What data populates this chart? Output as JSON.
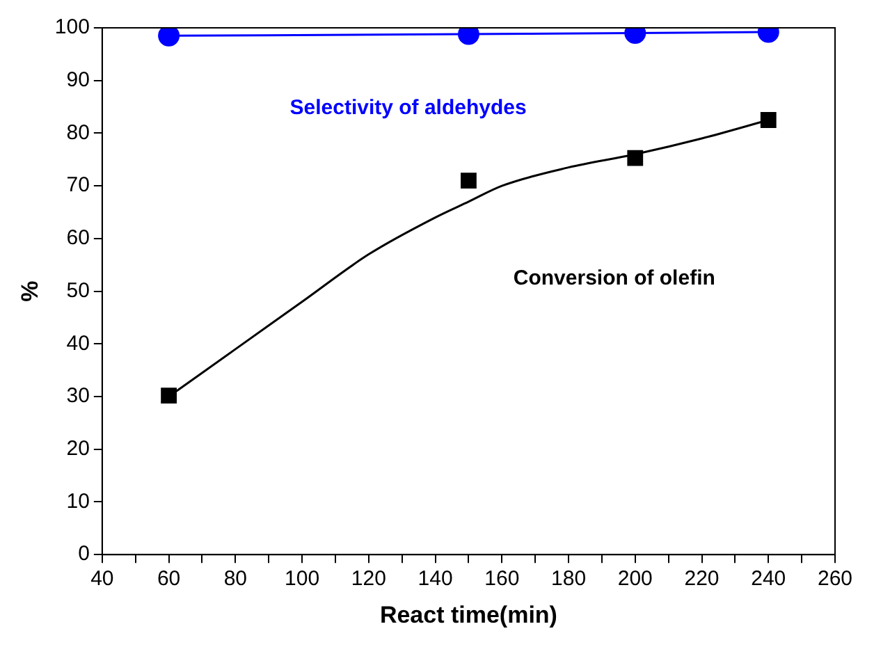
{
  "chart_data": {
    "type": "line",
    "xlabel": "React time(min)",
    "ylabel": "%",
    "xlim": [
      40,
      260
    ],
    "xticks": [
      40,
      {
        "value": 50,
        "label": null
      },
      60,
      {
        "value": 70,
        "label": null
      },
      80,
      {
        "value": 90,
        "label": null
      },
      100,
      {
        "value": 110,
        "label": null
      },
      120,
      {
        "value": 130,
        "label": null
      },
      140,
      {
        "value": 150,
        "label": null
      },
      160,
      {
        "value": 170,
        "label": null
      },
      180,
      {
        "value": 190,
        "label": null
      },
      200,
      {
        "value": 210,
        "label": null
      },
      220,
      {
        "value": 230,
        "label": null
      },
      240,
      {
        "value": 250,
        "label": null
      },
      260
    ],
    "ylim": [
      0,
      100
    ],
    "yticks": [
      0,
      10,
      20,
      30,
      40,
      50,
      60,
      70,
      80,
      90,
      100
    ],
    "grid": false,
    "legend": false,
    "series": [
      {
        "name": "Selectivity of aldehydes",
        "color": "#0000ff",
        "marker": "circle",
        "x": [
          60,
          150,
          200,
          240
        ],
        "values": [
          98.5,
          98.8,
          99,
          99.2
        ]
      },
      {
        "name": "Conversion of olefin",
        "type": "scatter",
        "color": "#000000",
        "marker": "square",
        "x": [
          60,
          150,
          200,
          240
        ],
        "values": [
          30.2,
          71,
          75.3,
          82.5
        ]
      },
      {
        "color": "#000000",
        "marker": "none",
        "x": [
          60,
          80,
          100,
          120,
          140,
          150,
          160,
          180,
          200,
          220,
          240
        ],
        "values": [
          30,
          39,
          48,
          57,
          64,
          67,
          70,
          73.5,
          76,
          79,
          82.5
        ]
      }
    ]
  }
}
